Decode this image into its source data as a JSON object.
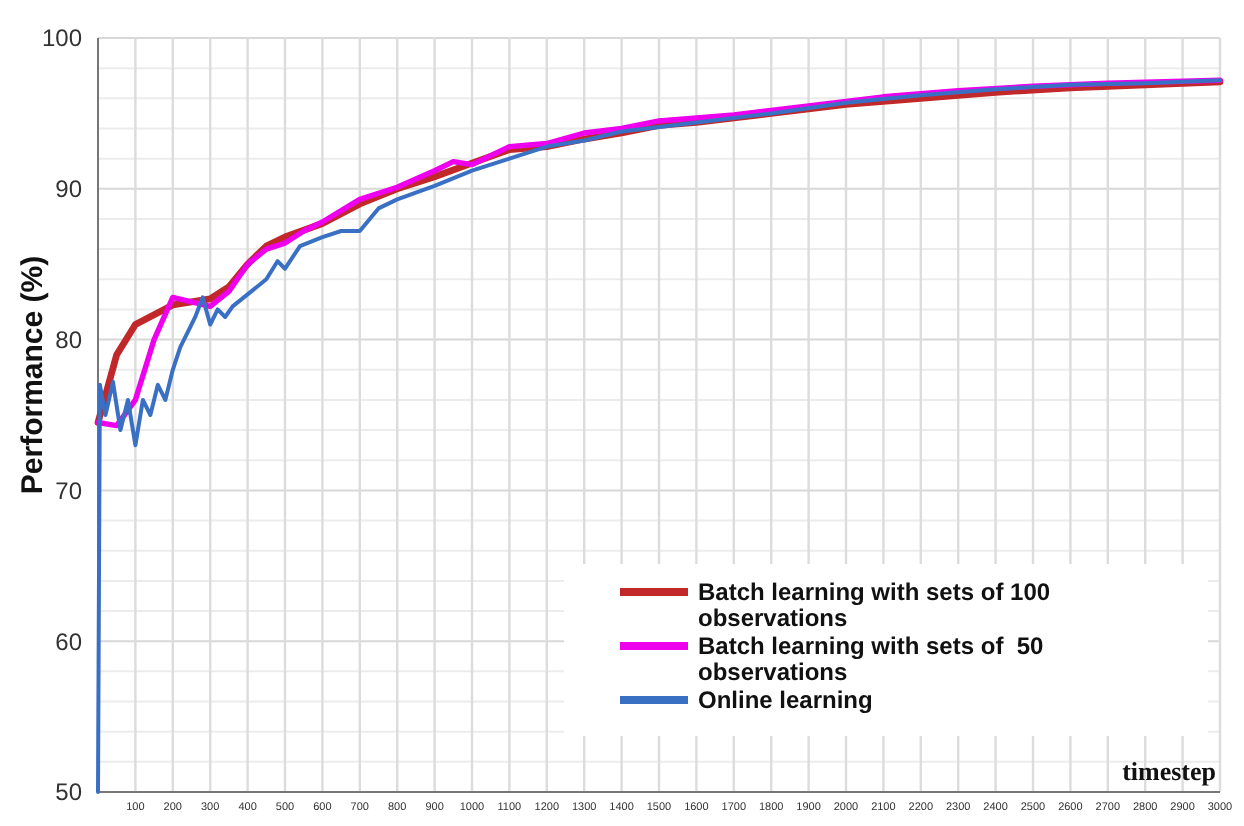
{
  "chart_data": {
    "type": "line",
    "xlabel": "timestep",
    "ylabel": "Performance (%)",
    "xlim": [
      0,
      3000
    ],
    "ylim": [
      50,
      100
    ],
    "xticks": [
      100,
      200,
      300,
      400,
      500,
      600,
      700,
      800,
      900,
      1000,
      1100,
      1200,
      1300,
      1400,
      1500,
      1600,
      1700,
      1800,
      1900,
      2000,
      2100,
      2200,
      2300,
      2400,
      2500,
      2600,
      2700,
      2800,
      2900,
      3000
    ],
    "yticks": [
      50,
      {
        "value": 52,
        "label": null
      },
      {
        "value": 54,
        "label": null
      },
      {
        "value": 56,
        "label": null
      },
      {
        "value": 58,
        "label": null
      },
      60,
      {
        "value": 62,
        "label": null
      },
      {
        "value": 64,
        "label": null
      },
      {
        "value": 66,
        "label": null
      },
      {
        "value": 68,
        "label": null
      },
      70,
      {
        "value": 72,
        "label": null
      },
      {
        "value": 74,
        "label": null
      },
      {
        "value": 76,
        "label": null
      },
      {
        "value": 78,
        "label": null
      },
      80,
      {
        "value": 82,
        "label": null
      },
      {
        "value": 84,
        "label": null
      },
      {
        "value": 86,
        "label": null
      },
      {
        "value": 88,
        "label": null
      },
      90,
      {
        "value": 92,
        "label": null
      },
      {
        "value": 94,
        "label": null
      },
      {
        "value": 96,
        "label": null
      },
      {
        "value": 98,
        "label": null
      },
      100
    ],
    "grid": true,
    "legend": "bottom right",
    "marker": "none",
    "line_style": "solid",
    "series": [
      {
        "name": "Batch learning with sets of 100 observations",
        "color": "#c0282a",
        "x": [
          0,
          50,
          100,
          200,
          300,
          350,
          400,
          450,
          500,
          600,
          700,
          800,
          900,
          1000,
          1100,
          1200,
          1300,
          1400,
          1500,
          1600,
          1800,
          2000,
          2200,
          2400,
          2600,
          2800,
          3000
        ],
        "values": [
          74.5,
          79,
          81,
          82.3,
          82.7,
          83.5,
          85,
          86.2,
          86.8,
          87.7,
          89,
          90,
          90.8,
          91.7,
          92.6,
          92.8,
          93.3,
          93.7,
          94.2,
          94.4,
          95,
          95.6,
          96,
          96.4,
          96.7,
          96.9,
          97.1
        ]
      },
      {
        "name": "Batch learning with sets of  50 observations",
        "color": "#ee00ee",
        "x": [
          0,
          50,
          100,
          150,
          200,
          250,
          300,
          350,
          400,
          450,
          500,
          550,
          600,
          700,
          800,
          900,
          950,
          1000,
          1100,
          1200,
          1300,
          1400,
          1500,
          1700,
          1900,
          2100,
          2300,
          2500,
          2700,
          3000
        ],
        "values": [
          74.5,
          74.3,
          76,
          80,
          82.8,
          82.5,
          82.2,
          83.2,
          85,
          86,
          86.4,
          87.2,
          87.8,
          89.3,
          90.1,
          91.2,
          91.8,
          91.6,
          92.8,
          93,
          93.7,
          94,
          94.5,
          94.9,
          95.5,
          96.1,
          96.5,
          96.8,
          97,
          97.2
        ]
      },
      {
        "name": "Online learning",
        "color": "#3a70c4",
        "x": [
          0,
          5,
          20,
          40,
          60,
          80,
          100,
          120,
          140,
          160,
          180,
          200,
          220,
          240,
          260,
          280,
          300,
          320,
          340,
          360,
          400,
          450,
          480,
          500,
          540,
          600,
          650,
          700,
          750,
          800,
          900,
          1000,
          1100,
          1200,
          1300,
          1400,
          1600,
          1800,
          2000,
          2200,
          2400,
          2600,
          2800,
          3000
        ],
        "values": [
          50,
          77,
          75,
          77.2,
          74,
          76,
          73,
          76,
          75,
          77,
          76,
          78,
          79.5,
          80.5,
          81.5,
          82.8,
          81,
          82,
          81.5,
          82.2,
          83,
          84,
          85.2,
          84.7,
          86.2,
          86.8,
          87.2,
          87.2,
          88.7,
          89.3,
          90.2,
          91.2,
          92,
          92.8,
          93.2,
          93.8,
          94.4,
          95,
          95.7,
          96.2,
          96.6,
          96.9,
          97,
          97.2
        ]
      }
    ]
  }
}
